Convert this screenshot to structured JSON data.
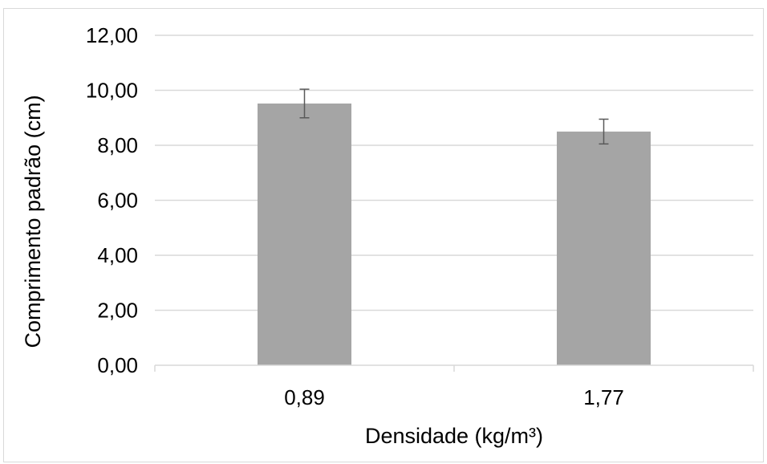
{
  "chart_data": {
    "type": "bar",
    "categories": [
      "0,89",
      "1,77"
    ],
    "values": [
      9.52,
      8.5
    ],
    "error": [
      0.52,
      0.45
    ],
    "y_ticks": [
      "0,00",
      "2,00",
      "4,00",
      "6,00",
      "8,00",
      "10,00",
      "12,00"
    ],
    "ylim": [
      0,
      12
    ],
    "xlabel": "Densidade (kg/m³)",
    "ylabel": "Comprimento padrão (cm)",
    "grid": true,
    "colors": {
      "bar": "#a5a5a5",
      "grid": "#d9d9d9",
      "error_bar": "#595959"
    }
  }
}
